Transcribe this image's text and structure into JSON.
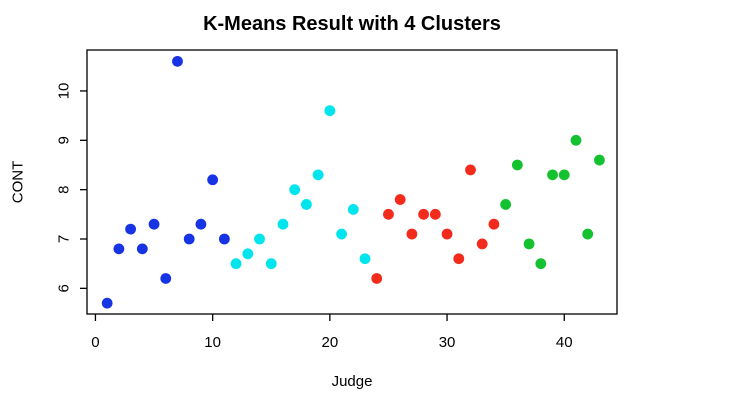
{
  "chart_data": {
    "type": "scatter",
    "title": "K-Means Result with 4 Clusters",
    "xlabel": "Judge",
    "ylabel": "CONT",
    "xlim": [
      -0.72,
      44.5
    ],
    "ylim": [
      5.48,
      10.83
    ],
    "x_ticks": [
      0,
      10,
      20,
      30,
      40
    ],
    "y_ticks": [
      6,
      7,
      8,
      9,
      10
    ],
    "grid": false,
    "legend": "none",
    "point_style": "filled-circle",
    "axis_color": "#000000",
    "background": "#ffffff",
    "series": [
      {
        "name": "cluster-1-blue",
        "color": "#1734e4",
        "points": [
          [
            1,
            5.7
          ],
          [
            2,
            6.8
          ],
          [
            3,
            7.2
          ],
          [
            4,
            6.8
          ],
          [
            5,
            7.3
          ],
          [
            6,
            6.2
          ],
          [
            7,
            10.6
          ],
          [
            8,
            7.0
          ],
          [
            9,
            7.3
          ],
          [
            10,
            8.2
          ],
          [
            11,
            7.0
          ]
        ]
      },
      {
        "name": "cluster-2-cyan",
        "color": "#00e4ee",
        "points": [
          [
            12,
            6.5
          ],
          [
            13,
            6.7
          ],
          [
            14,
            7.0
          ],
          [
            15,
            6.5
          ],
          [
            16,
            7.3
          ],
          [
            17,
            8.0
          ],
          [
            18,
            7.7
          ],
          [
            19,
            8.3
          ],
          [
            20,
            9.6
          ],
          [
            21,
            7.1
          ],
          [
            22,
            7.6
          ],
          [
            23,
            6.6
          ]
        ]
      },
      {
        "name": "cluster-3-red",
        "color": "#f32b1c",
        "points": [
          [
            24,
            6.2
          ],
          [
            25,
            7.5
          ],
          [
            26,
            7.8
          ],
          [
            27,
            7.1
          ],
          [
            28,
            7.5
          ],
          [
            29,
            7.5
          ],
          [
            30,
            7.1
          ],
          [
            31,
            6.6
          ],
          [
            32,
            8.4
          ],
          [
            33,
            6.9
          ],
          [
            34,
            7.3
          ]
        ]
      },
      {
        "name": "cluster-4-green",
        "color": "#13c22e",
        "points": [
          [
            35,
            7.7
          ],
          [
            36,
            8.5
          ],
          [
            37,
            6.9
          ],
          [
            38,
            6.5
          ],
          [
            39,
            8.3
          ],
          [
            40,
            8.3
          ],
          [
            41,
            9.0
          ],
          [
            42,
            7.1
          ],
          [
            43,
            8.6
          ]
        ]
      }
    ]
  }
}
